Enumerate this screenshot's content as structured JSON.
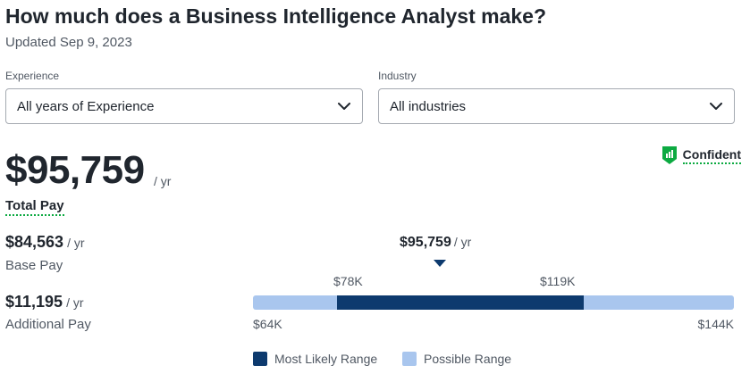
{
  "header": {
    "title": "How much does a Business Intelligence Analyst make?",
    "updated": "Updated Sep 9, 2023"
  },
  "filters": {
    "experience": {
      "label": "Experience",
      "value": "All years of Experience"
    },
    "industry": {
      "label": "Industry",
      "value": "All industries"
    }
  },
  "pay": {
    "total": "$95,759",
    "per": "/ yr",
    "total_label": "Total Pay",
    "base": "$84,563",
    "base_label": "Base Pay",
    "additional": "$11,195",
    "additional_label": "Additional Pay"
  },
  "confidence": {
    "label": "Confident"
  },
  "range": {
    "median_label": "$95,759",
    "median_value": 95759,
    "likely_low_label": "$78K",
    "likely_high_label": "$119K",
    "possible_low_label": "$64K",
    "possible_high_label": "$144K",
    "likely_low": 78000,
    "likely_high": 119000,
    "possible_low": 64000,
    "possible_high": 144000
  },
  "legend": {
    "likely": "Most Likely Range",
    "possible": "Possible Range"
  },
  "colors": {
    "likely": "#0d3a6e",
    "possible": "#a9c6ee",
    "confident_green": "#0caa41"
  },
  "icons": {
    "dropdown": "chevron-down-icon",
    "confidence": "confidence-badge-icon"
  }
}
